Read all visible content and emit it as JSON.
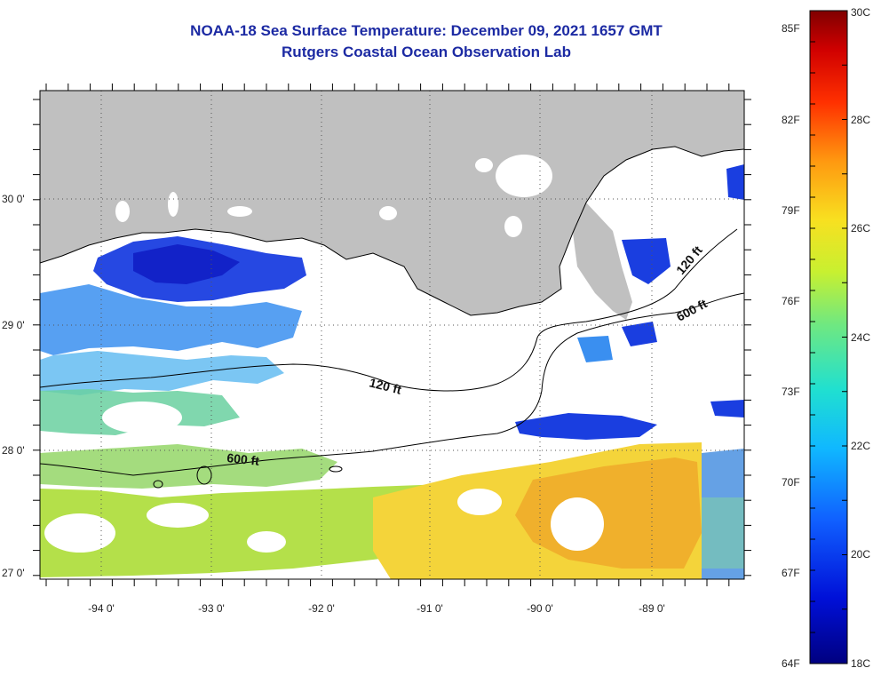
{
  "title": {
    "line1": "NOAA-18 Sea Surface Temperature:  December 09, 2021 1657 GMT",
    "line2": "Rutgers Coastal Ocean Observation Lab"
  },
  "axes": {
    "longitude_labels": [
      "-94 0'",
      "-93 0'",
      "-92 0'",
      "-91 0'",
      "-90 0'",
      "-89 0'"
    ],
    "latitude_labels": [
      "30 0'",
      "29 0'",
      "28 0'",
      "27 0'"
    ]
  },
  "contours": {
    "label_120_west": "120 ft",
    "label_600_west": "600 ft",
    "label_120_east": "120 ft",
    "label_600_east": "600 ft"
  },
  "colorbar": {
    "fahrenheit_labels": [
      "85F",
      "82F",
      "79F",
      "76F",
      "73F",
      "70F",
      "67F",
      "64F"
    ],
    "celsius_labels": [
      "30C",
      "28C",
      "26C",
      "24C",
      "22C",
      "20C",
      "18C"
    ],
    "range_c": [
      18,
      30
    ]
  },
  "colors": {
    "land": "#c0c0c0",
    "cloud": "#ffffff",
    "title": "#1c2aa3",
    "cold": "#1a3ee0",
    "cool": "#3a8ff0",
    "mid": "#6ad0a0",
    "greenyellow": "#b4e04a",
    "yellow": "#f4d43a",
    "orange": "#f0b02c"
  }
}
